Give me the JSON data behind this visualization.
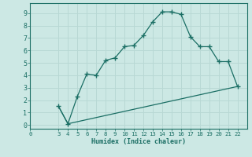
{
  "xlabel": "Humidex (Indice chaleur)",
  "bg_color": "#cce8e4",
  "line_color": "#1a6e64",
  "grid_color": "#b8d8d4",
  "curve1_x": [
    3,
    4,
    5,
    6,
    7,
    8,
    9,
    10,
    11,
    12,
    13,
    14,
    15,
    16,
    17,
    18,
    19,
    20,
    21,
    22
  ],
  "curve1_y": [
    1.5,
    0.1,
    2.3,
    4.1,
    4.0,
    5.2,
    5.4,
    6.3,
    6.4,
    7.2,
    8.3,
    9.1,
    9.1,
    8.9,
    7.1,
    6.3,
    6.3,
    5.1,
    5.1,
    3.1
  ],
  "curve2_x": [
    3,
    4,
    22
  ],
  "curve2_y": [
    1.5,
    0.1,
    3.1
  ],
  "xticks": [
    0,
    3,
    4,
    5,
    6,
    7,
    8,
    9,
    10,
    11,
    12,
    13,
    14,
    15,
    16,
    17,
    18,
    19,
    20,
    21,
    22
  ],
  "yticks": [
    0,
    1,
    2,
    3,
    4,
    5,
    6,
    7,
    8,
    9
  ],
  "xlim": [
    0,
    23
  ],
  "ylim": [
    -0.3,
    9.8
  ]
}
